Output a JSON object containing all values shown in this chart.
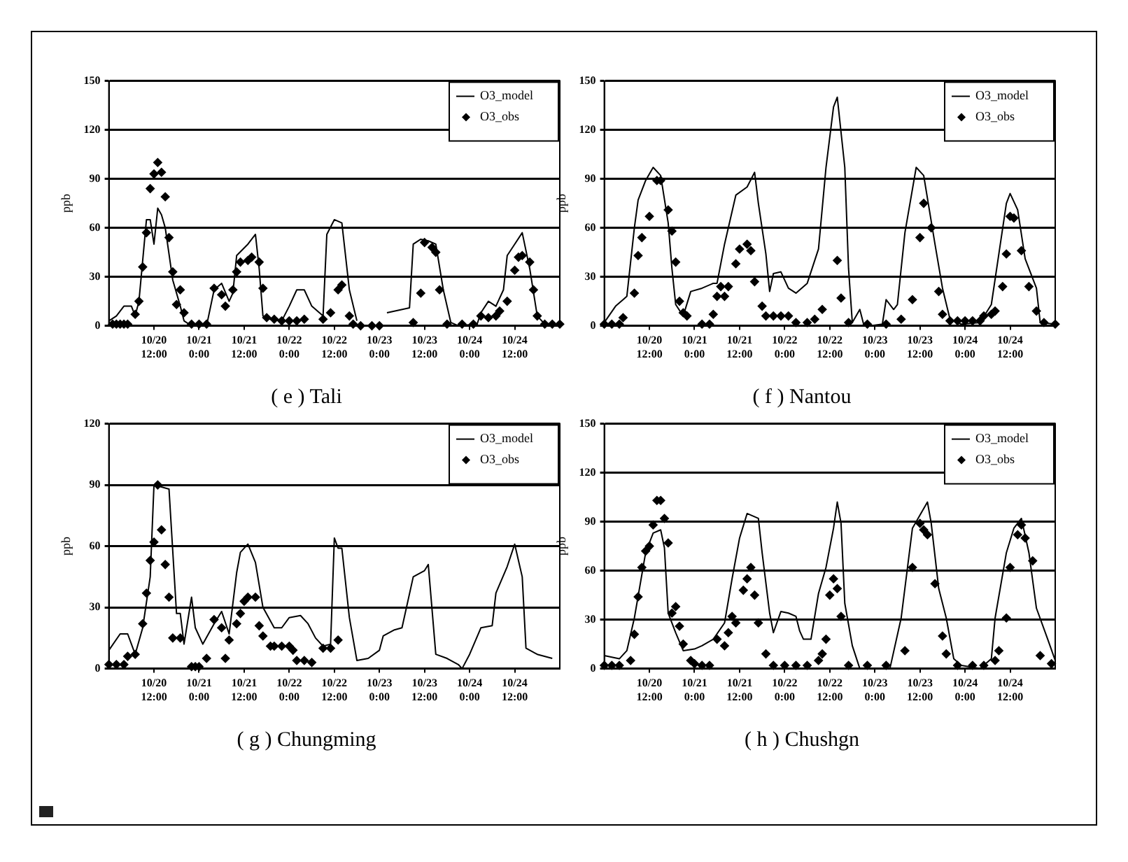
{
  "chart_data": [
    {
      "type": "line",
      "title": "( e ) Tali",
      "ylabel": "ppb",
      "xlim": [
        "--10-20T00:00",
        "--10-25T00:00"
      ],
      "ylim": [
        0,
        150
      ],
      "yticks": [
        0,
        30,
        60,
        90,
        120,
        150
      ],
      "xticks": [
        {
          "value": "--10-20T12:00",
          "label": "10/20 12:00"
        },
        {
          "value": "--10-21T00:00",
          "label": "10/21 0:00"
        },
        {
          "value": "--10-21T12:00",
          "label": "10/21 12:00"
        },
        {
          "value": "--10-22T00:00",
          "label": "10/22 0:00"
        },
        {
          "value": "--10-22T12:00",
          "label": "10/22 12:00"
        },
        {
          "value": "--10-23T00:00",
          "label": "10/23 0:00"
        },
        {
          "value": "--10-23T12:00",
          "label": "10/23 12:00"
        },
        {
          "value": "--10-24T00:00",
          "label": "10/24 0:00"
        },
        {
          "value": "--10-24T12:00",
          "label": "10/24 12:00"
        }
      ],
      "grid": "y",
      "legend": "top right",
      "series": [
        {
          "name": "O3_model",
          "type": "line",
          "color": "#000000",
          "marker": "none",
          "x": [
            "--10-20T00:00",
            "--10-20T02:00",
            "--10-20T04:00",
            "--10-20T06:00",
            "--10-20T07:00",
            "--10-20T08:00",
            "--10-20T10:00",
            "--10-20T11:00",
            "--10-20T12:00",
            "--10-20T13:00",
            "--10-20T14:00",
            "--10-20T15:00",
            "--10-20T17:00",
            "--10-20T19:00",
            "--10-20T20:00",
            "--10-20T22:00",
            "--10-21T02:00",
            "--10-21T04:00",
            "--10-21T06:00",
            "--10-21T08:00",
            "--10-21T09:00",
            "--10-21T10:00",
            "--10-21T13:00",
            "--10-21T15:00",
            "--10-21T16:00",
            "--10-21T17:00",
            "--10-21T19:00",
            "--10-21T22:00",
            "--10-22T00:00",
            "--10-22T02:00",
            "--10-22T04:00",
            "--10-22T06:00",
            "--10-22T09:00",
            "--10-22T10:00",
            "--10-22T12:00",
            "--10-22T14:00",
            "--10-22T16:00",
            "--10-22T18:00",
            "--10-22T22:00",
            "--10-23T02:00",
            "--10-23T08:00",
            "--10-23T09:00",
            "--10-23T11:00",
            "--10-23T13:00",
            "--10-23T15:00",
            "--10-23T17:00",
            "--10-23T19:00",
            "--10-23T21:00",
            "--10-24T02:00",
            "--10-24T03:00",
            "--10-24T05:00",
            "--10-24T07:00",
            "--10-24T09:00",
            "--10-24T10:00",
            "--10-24T12:00",
            "--10-24T14:00",
            "--10-24T16:00",
            "--10-24T18:00",
            "--10-24T20:00",
            "--10-25T00:00"
          ],
          "values": [
            3,
            6,
            12,
            12,
            6,
            15,
            65,
            65,
            50,
            72,
            68,
            60,
            28,
            12,
            3,
            0,
            0,
            22,
            26,
            15,
            20,
            43,
            50,
            56,
            35,
            6,
            4,
            3,
            12,
            22,
            22,
            12,
            6,
            56,
            65,
            63,
            22,
            3,
            null,
            8,
            11,
            50,
            53,
            52,
            50,
            22,
            2,
            0,
            1,
            8,
            15,
            12,
            22,
            43,
            50,
            57,
            35,
            6,
            1,
            1
          ]
        },
        {
          "name": "O3_obs",
          "type": "scatter",
          "color": "#000000",
          "marker": "diamond",
          "x": [
            "--10-20T01:00",
            "--10-20T02:00",
            "--10-20T03:00",
            "--10-20T04:00",
            "--10-20T05:00",
            "--10-20T07:00",
            "--10-20T08:00",
            "--10-20T09:00",
            "--10-20T10:00",
            "--10-20T11:00",
            "--10-20T12:00",
            "--10-20T13:00",
            "--10-20T14:00",
            "--10-20T15:00",
            "--10-20T16:00",
            "--10-20T17:00",
            "--10-20T18:00",
            "--10-20T19:00",
            "--10-20T20:00",
            "--10-20T22:00",
            "--10-21T00:00",
            "--10-21T02:00",
            "--10-21T04:00",
            "--10-21T06:00",
            "--10-21T07:00",
            "--10-21T09:00",
            "--10-21T10:00",
            "--10-21T11:00",
            "--10-21T13:00",
            "--10-21T14:00",
            "--10-21T16:00",
            "--10-21T17:00",
            "--10-21T18:00",
            "--10-21T20:00",
            "--10-21T22:00",
            "--10-22T00:00",
            "--10-22T02:00",
            "--10-22T04:00",
            "--10-22T09:00",
            "--10-22T11:00",
            "--10-22T13:00",
            "--10-22T14:00",
            "--10-22T16:00",
            "--10-22T17:00",
            "--10-22T19:00",
            "--10-22T22:00",
            "--10-23T00:00",
            "--10-23T09:00",
            "--10-23T11:00",
            "--10-23T12:00",
            "--10-23T14:00",
            "--10-23T15:00",
            "--10-23T16:00",
            "--10-23T18:00",
            "--10-23T22:00",
            "--10-24T01:00",
            "--10-24T03:00",
            "--10-24T05:00",
            "--10-24T07:00",
            "--10-24T08:00",
            "--10-24T10:00",
            "--10-24T12:00",
            "--10-24T13:00",
            "--10-24T14:00",
            "--10-24T16:00",
            "--10-24T17:00",
            "--10-24T18:00",
            "--10-24T20:00",
            "--10-24T22:00",
            "--10-25T00:00"
          ],
          "values": [
            1,
            1,
            1,
            1,
            1,
            7,
            15,
            36,
            57,
            84,
            93,
            100,
            94,
            79,
            54,
            33,
            13,
            22,
            8,
            1,
            1,
            1,
            23,
            19,
            12,
            22,
            33,
            39,
            40,
            42,
            39,
            23,
            5,
            4,
            3,
            3,
            3,
            4,
            4,
            8,
            22,
            25,
            6,
            1,
            0,
            0,
            0,
            2,
            20,
            51,
            48,
            45,
            22,
            1,
            1,
            1,
            6,
            5,
            6,
            9,
            15,
            34,
            42,
            43,
            39,
            22,
            6,
            1,
            1,
            1
          ]
        }
      ]
    },
    {
      "type": "line",
      "title": "( f ) Nantou",
      "ylabel": "ppb",
      "xlim": [
        "--10-20T00:00",
        "--10-25T00:00"
      ],
      "ylim": [
        0,
        150
      ],
      "yticks": [
        0,
        30,
        60,
        90,
        120,
        150
      ],
      "xticks": [
        {
          "value": "--10-20T12:00",
          "label": "10/20 12:00"
        },
        {
          "value": "--10-21T00:00",
          "label": "10/21 0:00"
        },
        {
          "value": "--10-21T12:00",
          "label": "10/21 12:00"
        },
        {
          "value": "--10-22T00:00",
          "label": "10/22 0:00"
        },
        {
          "value": "--10-22T12:00",
          "label": "10/22 12:00"
        },
        {
          "value": "--10-23T00:00",
          "label": "10/23 0:00"
        },
        {
          "value": "--10-23T12:00",
          "label": "10/23 12:00"
        },
        {
          "value": "--10-24T00:00",
          "label": "10/24 0:00"
        },
        {
          "value": "--10-24T12:00",
          "label": "10/24 12:00"
        }
      ],
      "grid": "y",
      "legend": "top right",
      "series": [
        {
          "name": "O3_model",
          "type": "line",
          "color": "#000000",
          "marker": "none",
          "x": [
            "--10-20T00:00",
            "--10-20T03:00",
            "--10-20T05:00",
            "--10-20T06:00",
            "--10-20T08:00",
            "--10-20T09:00",
            "--10-20T11:00",
            "--10-20T13:00",
            "--10-20T15:00",
            "--10-20T17:00",
            "--10-20T18:00",
            "--10-20T19:00",
            "--10-20T21:00",
            "--10-20T23:00",
            "--10-21T02:00",
            "--10-21T05:00",
            "--10-21T06:00",
            "--10-21T08:00",
            "--10-21T11:00",
            "--10-21T14:00",
            "--10-21T16:00",
            "--10-21T17:00",
            "--10-21T19:00",
            "--10-21T20:00",
            "--10-21T21:00",
            "--10-21T23:00",
            "--10-22T01:00",
            "--10-22T03:00",
            "--10-22T06:00",
            "--10-22T09:00",
            "--10-22T11:00",
            "--10-22T13:00",
            "--10-22T14:00",
            "--10-22T16:00",
            "--10-22T17:00",
            "--10-22T18:00",
            "--10-22T20:00",
            "--10-22T21:00",
            "--10-22T23:00",
            "--10-23T02:00",
            "--10-23T03:00",
            "--10-23T05:00",
            "--10-23T06:00",
            "--10-23T08:00",
            "--10-23T11:00",
            "--10-23T13:00",
            "--10-23T16:00",
            "--10-23T18:00",
            "--10-23T20:00",
            "--10-23T23:00",
            "--10-24T04:00",
            "--10-24T07:00",
            "--10-24T09:00",
            "--10-24T11:00",
            "--10-24T12:00",
            "--10-24T14:00",
            "--10-24T16:00",
            "--10-24T19:00",
            "--10-24T20:00",
            "--10-25T00:00"
          ],
          "values": [
            2,
            12,
            16,
            18,
            60,
            77,
            89,
            97,
            92,
            63,
            35,
            13,
            6,
            21,
            23,
            26,
            26,
            50,
            80,
            85,
            94,
            75,
            44,
            21,
            32,
            33,
            23,
            20,
            26,
            47,
            97,
            134,
            140,
            97,
            35,
            2,
            10,
            1,
            0,
            1,
            16,
            10,
            13,
            57,
            97,
            92,
            50,
            23,
            4,
            1,
            2,
            13,
            44,
            75,
            81,
            71,
            41,
            23,
            2,
            1
          ]
        },
        {
          "name": "O3_obs",
          "type": "scatter",
          "color": "#000000",
          "marker": "diamond",
          "x": [
            "--10-20T00:00",
            "--10-20T02:00",
            "--10-20T04:00",
            "--10-20T05:00",
            "--10-20T08:00",
            "--10-20T09:00",
            "--10-20T10:00",
            "--10-20T12:00",
            "--10-20T14:00",
            "--10-20T15:00",
            "--10-20T17:00",
            "--10-20T18:00",
            "--10-20T19:00",
            "--10-20T20:00",
            "--10-20T21:00",
            "--10-20T22:00",
            "--10-21T02:00",
            "--10-21T04:00",
            "--10-21T05:00",
            "--10-21T06:00",
            "--10-21T07:00",
            "--10-21T08:00",
            "--10-21T09:00",
            "--10-21T11:00",
            "--10-21T12:00",
            "--10-21T14:00",
            "--10-21T15:00",
            "--10-21T16:00",
            "--10-21T18:00",
            "--10-21T19:00",
            "--10-21T21:00",
            "--10-21T23:00",
            "--10-22T01:00",
            "--10-22T03:00",
            "--10-22T06:00",
            "--10-22T08:00",
            "--10-22T10:00",
            "--10-22T14:00",
            "--10-22T15:00",
            "--10-22T17:00",
            "--10-22T22:00",
            "--10-23T03:00",
            "--10-23T07:00",
            "--10-23T10:00",
            "--10-23T12:00",
            "--10-23T13:00",
            "--10-23T15:00",
            "--10-23T17:00",
            "--10-23T18:00",
            "--10-23T20:00",
            "--10-23T22:00",
            "--10-24T00:00",
            "--10-24T02:00",
            "--10-24T04:00",
            "--10-24T05:00",
            "--10-24T07:00",
            "--10-24T08:00",
            "--10-24T10:00",
            "--10-24T11:00",
            "--10-24T12:00",
            "--10-24T13:00",
            "--10-24T15:00",
            "--10-24T17:00",
            "--10-24T19:00",
            "--10-24T21:00",
            "--10-25T00:00"
          ],
          "values": [
            1,
            1,
            1,
            5,
            20,
            43,
            54,
            67,
            89,
            89,
            71,
            58,
            39,
            15,
            8,
            6,
            1,
            1,
            7,
            18,
            24,
            18,
            24,
            38,
            47,
            50,
            46,
            27,
            12,
            6,
            6,
            6,
            6,
            2,
            2,
            4,
            10,
            40,
            17,
            2,
            1,
            1,
            4,
            16,
            54,
            75,
            60,
            21,
            7,
            3,
            3,
            3,
            3,
            3,
            6,
            7,
            9,
            24,
            44,
            67,
            66,
            46,
            24,
            9,
            2,
            1
          ]
        }
      ]
    },
    {
      "type": "line",
      "title": "( g ) Chungming",
      "ylabel": "ppb",
      "xlim": [
        "--10-20T00:00",
        "--10-25T00:00"
      ],
      "ylim": [
        0,
        120
      ],
      "yticks": [
        0,
        30,
        60,
        90,
        120
      ],
      "xticks": [
        {
          "value": "--10-20T12:00",
          "label": "10/20 12:00"
        },
        {
          "value": "--10-21T00:00",
          "label": "10/21 0:00"
        },
        {
          "value": "--10-21T12:00",
          "label": "10/21 12:00"
        },
        {
          "value": "--10-22T00:00",
          "label": "10/22 0:00"
        },
        {
          "value": "--10-22T12:00",
          "label": "10/22 12:00"
        },
        {
          "value": "--10-23T00:00",
          "label": "10/23 0:00"
        },
        {
          "value": "--10-23T12:00",
          "label": "10/23 12:00"
        },
        {
          "value": "--10-24T00:00",
          "label": "10/24 0:00"
        },
        {
          "value": "--10-24T12:00",
          "label": "10/24 12:00"
        }
      ],
      "grid": "y",
      "legend": "top right",
      "series": [
        {
          "name": "O3_model",
          "type": "line",
          "color": "#000000",
          "marker": "none",
          "x": [
            "--10-20T00:00",
            "--10-20T03:00",
            "--10-20T05:00",
            "--10-20T07:00",
            "--10-20T09:00",
            "--10-20T11:00",
            "--10-20T12:00",
            "--10-20T14:00",
            "--10-20T16:00",
            "--10-20T18:00",
            "--10-20T19:00",
            "--10-20T20:00",
            "--10-20T22:00",
            "--10-20T23:00",
            "--10-21T01:00",
            "--10-21T04:00",
            "--10-21T06:00",
            "--10-21T08:00",
            "--10-21T10:00",
            "--10-21T11:00",
            "--10-21T13:00",
            "--10-21T15:00",
            "--10-21T17:00",
            "--10-21T20:00",
            "--10-21T22:00",
            "--10-22T00:00",
            "--10-22T03:00",
            "--10-22T05:00",
            "--10-22T07:00",
            "--10-22T09:00",
            "--10-22T11:00",
            "--10-22T12:00",
            "--10-22T13:00",
            "--10-22T14:00",
            "--10-22T16:00",
            "--10-22T18:00",
            "--10-22T21:00",
            "--10-23T00:00",
            "--10-23T01:00",
            "--10-23T04:00",
            "--10-23T06:00",
            "--10-23T09:00",
            "--10-23T12:00",
            "--10-23T13:00",
            "--10-23T15:00",
            "--10-23T18:00",
            "--10-23T21:00",
            "--10-23T22:00",
            "--10-24T00:00",
            "--10-24T03:00",
            "--10-24T06:00",
            "--10-24T07:00",
            "--10-24T10:00",
            "--10-24T12:00",
            "--10-24T14:00",
            "--10-24T15:00",
            "--10-24T18:00",
            "--10-24T22:00"
          ],
          "values": [
            9,
            17,
            17,
            7,
            20,
            45,
            90,
            89,
            88,
            27,
            27,
            12,
            35,
            20,
            12,
            22,
            28,
            17,
            47,
            57,
            61,
            52,
            30,
            20,
            20,
            25,
            26,
            22,
            15,
            11,
            12,
            64,
            59,
            59,
            25,
            4,
            5,
            9,
            16,
            19,
            20,
            45,
            48,
            51,
            7,
            5,
            2,
            0,
            7,
            20,
            21,
            37,
            50,
            61,
            45,
            10,
            7,
            5
          ]
        },
        {
          "name": "O3_obs",
          "type": "scatter",
          "color": "#000000",
          "marker": "diamond",
          "x": [
            "--10-20T00:00",
            "--10-20T02:00",
            "--10-20T04:00",
            "--10-20T05:00",
            "--10-20T07:00",
            "--10-20T09:00",
            "--10-20T10:00",
            "--10-20T11:00",
            "--10-20T12:00",
            "--10-20T13:00",
            "--10-20T14:00",
            "--10-20T15:00",
            "--10-20T16:00",
            "--10-20T17:00",
            "--10-20T19:00",
            "--10-20T22:00",
            "--10-20T23:00",
            "--10-21T00:00",
            "--10-21T02:00",
            "--10-21T04:00",
            "--10-21T06:00",
            "--10-21T07:00",
            "--10-21T08:00",
            "--10-21T10:00",
            "--10-21T11:00",
            "--10-21T12:00",
            "--10-21T13:00",
            "--10-21T15:00",
            "--10-21T16:00",
            "--10-21T17:00",
            "--10-21T19:00",
            "--10-21T20:00",
            "--10-21T22:00",
            "--10-22T00:00",
            "--10-22T01:00",
            "--10-22T02:00",
            "--10-22T04:00",
            "--10-22T06:00",
            "--10-22T09:00",
            "--10-22T11:00",
            "--10-22T13:00"
          ],
          "values": [
            2,
            2,
            2,
            6,
            7,
            22,
            37,
            53,
            62,
            90,
            68,
            51,
            35,
            15,
            15,
            1,
            1,
            1,
            5,
            24,
            20,
            5,
            14,
            22,
            27,
            33,
            35,
            35,
            21,
            16,
            11,
            11,
            11,
            11,
            9,
            4,
            4,
            3,
            10,
            10,
            14
          ]
        }
      ]
    },
    {
      "type": "line",
      "title": "( h ) Chushgn",
      "ylabel": "ppb",
      "xlim": [
        "--10-20T00:00",
        "--10-25T00:00"
      ],
      "ylim": [
        0,
        150
      ],
      "yticks": [
        0,
        30,
        60,
        90,
        120,
        150
      ],
      "xticks": [
        {
          "value": "--10-20T12:00",
          "label": "10/20 12:00"
        },
        {
          "value": "--10-21T00:00",
          "label": "10/21 0:00"
        },
        {
          "value": "--10-21T12:00",
          "label": "10/21 12:00"
        },
        {
          "value": "--10-22T00:00",
          "label": "10/22 0:00"
        },
        {
          "value": "--10-22T12:00",
          "label": "10/22 12:00"
        },
        {
          "value": "--10-23T00:00",
          "label": "10/23 0:00"
        },
        {
          "value": "--10-23T12:00",
          "label": "10/23 12:00"
        },
        {
          "value": "--10-24T00:00",
          "label": "10/24 0:00"
        },
        {
          "value": "--10-24T12:00",
          "label": "10/24 12:00"
        }
      ],
      "grid": "y",
      "legend": "top right",
      "series": [
        {
          "name": "O3_model",
          "type": "line",
          "color": "#000000",
          "marker": "none",
          "x": [
            "--10-20T00:00",
            "--10-20T04:00",
            "--10-20T06:00",
            "--10-20T08:00",
            "--10-20T11:00",
            "--10-20T13:00",
            "--10-20T15:00",
            "--10-20T16:00",
            "--10-20T17:00",
            "--10-20T19:00",
            "--10-20T21:00",
            "--10-21T00:00",
            "--10-21T02:00",
            "--10-21T05:00",
            "--10-21T08:00",
            "--10-21T10:00",
            "--10-21T12:00",
            "--10-21T14:00",
            "--10-21T17:00",
            "--10-21T18:00",
            "--10-21T20:00",
            "--10-21T21:00",
            "--10-21T23:00",
            "--10-22T01:00",
            "--10-22T03:00",
            "--10-22T04:00",
            "--10-22T05:00",
            "--10-22T07:00",
            "--10-22T09:00",
            "--10-22T11:00",
            "--10-22T13:00",
            "--10-22T14:00",
            "--10-22T15:00",
            "--10-22T16:00",
            "--10-22T18:00",
            "--10-22T20:00",
            "--10-23T04:00",
            "--10-23T07:00",
            "--10-23T10:00",
            "--10-23T12:00",
            "--10-23T14:00",
            "--10-23T15:00",
            "--10-23T17:00",
            "--10-23T19:00",
            "--10-23T21:00",
            "--10-23T23:00",
            "--10-24T04:00",
            "--10-24T07:00",
            "--10-24T08:00",
            "--10-24T11:00",
            "--10-24T13:00",
            "--10-24T15:00",
            "--10-24T17:00",
            "--10-24T19:00",
            "--10-24T22:00",
            "--10-25T00:00"
          ],
          "values": [
            8,
            6,
            11,
            31,
            71,
            83,
            85,
            74,
            34,
            22,
            11,
            12,
            14,
            18,
            28,
            55,
            80,
            95,
            92,
            71,
            34,
            22,
            35,
            34,
            32,
            23,
            18,
            18,
            46,
            62,
            86,
            102,
            89,
            40,
            14,
            0,
            0,
            31,
            86,
            94,
            102,
            89,
            49,
            31,
            6,
            2,
            0,
            6,
            31,
            71,
            86,
            92,
            71,
            37,
            18,
            5
          ]
        },
        {
          "name": "O3_obs",
          "type": "scatter",
          "color": "#000000",
          "marker": "diamond",
          "x": [
            "--10-20T00:00",
            "--10-20T02:00",
            "--10-20T04:00",
            "--10-20T07:00",
            "--10-20T08:00",
            "--10-20T09:00",
            "--10-20T10:00",
            "--10-20T11:00",
            "--10-20T12:00",
            "--10-20T13:00",
            "--10-20T14:00",
            "--10-20T15:00",
            "--10-20T16:00",
            "--10-20T17:00",
            "--10-20T18:00",
            "--10-20T19:00",
            "--10-20T20:00",
            "--10-20T21:00",
            "--10-20T23:00",
            "--10-21T00:00",
            "--10-21T02:00",
            "--10-21T04:00",
            "--10-21T06:00",
            "--10-21T08:00",
            "--10-21T09:00",
            "--10-21T10:00",
            "--10-21T11:00",
            "--10-21T13:00",
            "--10-21T14:00",
            "--10-21T15:00",
            "--10-21T16:00",
            "--10-21T17:00",
            "--10-21T19:00",
            "--10-21T21:00",
            "--10-22T00:00",
            "--10-22T03:00",
            "--10-22T06:00",
            "--10-22T09:00",
            "--10-22T10:00",
            "--10-22T11:00",
            "--10-22T12:00",
            "--10-22T13:00",
            "--10-22T14:00",
            "--10-22T15:00",
            "--10-22T17:00",
            "--10-22T22:00",
            "--10-23T03:00",
            "--10-23T08:00",
            "--10-23T10:00",
            "--10-23T12:00",
            "--10-23T13:00",
            "--10-23T14:00",
            "--10-23T16:00",
            "--10-23T18:00",
            "--10-23T19:00",
            "--10-23T22:00",
            "--10-24T02:00",
            "--10-24T05:00",
            "--10-24T08:00",
            "--10-24T09:00",
            "--10-24T11:00",
            "--10-24T12:00",
            "--10-24T14:00",
            "--10-24T15:00",
            "--10-24T16:00",
            "--10-24T18:00",
            "--10-24T20:00",
            "--10-24T23:00"
          ],
          "values": [
            2,
            2,
            2,
            5,
            21,
            44,
            62,
            72,
            75,
            88,
            103,
            103,
            92,
            77,
            34,
            38,
            26,
            15,
            5,
            3,
            2,
            2,
            18,
            14,
            22,
            32,
            28,
            48,
            55,
            62,
            45,
            28,
            9,
            2,
            2,
            2,
            2,
            5,
            9,
            18,
            45,
            55,
            49,
            32,
            2,
            2,
            2,
            11,
            62,
            89,
            85,
            82,
            52,
            20,
            9,
            2,
            2,
            2,
            5,
            11,
            31,
            62,
            82,
            88,
            80,
            66,
            8,
            3
          ]
        }
      ]
    }
  ]
}
